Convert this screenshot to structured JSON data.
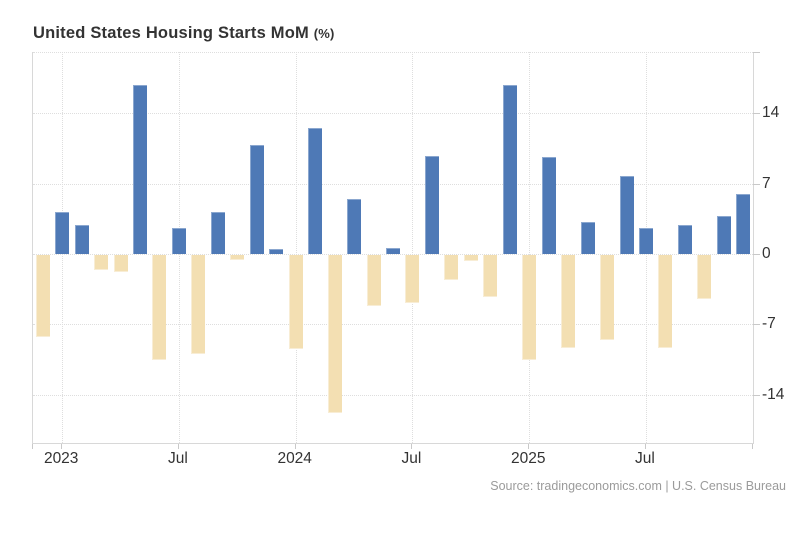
{
  "title": {
    "main": "United States Housing Starts MoM",
    "unit_suffix": "(%)"
  },
  "source_line": "Source: tradingeconomics.com | U.S. Census Bureau",
  "colors": {
    "bar_positive": "#4e79b6",
    "bar_negative": "#f3dfb2",
    "grid_line": "#dedede",
    "plot_border": "#d8d8d8",
    "tick_mark": "#c9c9c9",
    "axis_label": "#333333",
    "title_text": "#333333",
    "source_text": "#9b9b9b"
  },
  "chart_data": {
    "type": "bar",
    "title": "United States Housing Starts MoM (%)",
    "ylabel": "",
    "xlabel": "",
    "grid": "dotted",
    "legend": "none",
    "bar_color_rule": "positive values blue, negative values tan",
    "x": [
      "2022-12",
      "2023-01",
      "2023-02",
      "2023-03",
      "2023-04",
      "2023-05",
      "2023-06",
      "2023-07",
      "2023-08",
      "2023-09",
      "2023-10",
      "2023-11",
      "2023-12",
      "2024-01",
      "2024-02",
      "2024-03",
      "2024-04",
      "2024-05",
      "2024-06",
      "2024-07",
      "2024-08",
      "2024-09",
      "2024-10",
      "2024-11",
      "2024-12",
      "2025-01",
      "2025-02",
      "2025-03",
      "2025-04",
      "2025-05",
      "2025-06",
      "2025-07",
      "2025-08",
      "2025-09",
      "2025-10",
      "2025-11",
      "2025-12"
    ],
    "values": [
      -8.1,
      4.2,
      2.9,
      -1.5,
      -1.7,
      16.8,
      -10.4,
      2.6,
      -9.8,
      4.2,
      -0.5,
      10.8,
      0.5,
      -9.3,
      12.5,
      -15.7,
      5.5,
      -5.1,
      0.6,
      -4.8,
      9.7,
      -2.5,
      -0.6,
      -4.2,
      16.8,
      -10.4,
      9.6,
      -9.2,
      3.2,
      -8.4,
      7.7,
      2.6,
      -9.2,
      2.9,
      -4.4,
      3.8,
      6.0
    ],
    "y_axis": {
      "side": "right",
      "ticks": [
        14,
        7,
        0,
        -7,
        -14
      ],
      "range": [
        -18.8,
        20.1
      ]
    },
    "x_axis": {
      "ticks": [
        {
          "label": "2023",
          "bar_index": 1
        },
        {
          "label": "Jul",
          "bar_index": 7
        },
        {
          "label": "2024",
          "bar_index": 13
        },
        {
          "label": "Jul",
          "bar_index": 19
        },
        {
          "label": "2025",
          "bar_index": 25
        },
        {
          "label": "Jul",
          "bar_index": 31
        }
      ]
    }
  }
}
